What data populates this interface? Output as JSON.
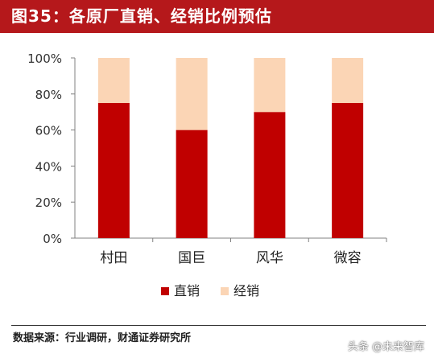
{
  "header": {
    "title": "图35：各原厂直销、经销比例预估"
  },
  "chart_data": {
    "type": "bar",
    "stacked": true,
    "categories": [
      "村田",
      "国巨",
      "风华",
      "微容"
    ],
    "series": [
      {
        "name": "直销",
        "values": [
          75,
          60,
          70,
          75
        ],
        "color": "#c00000"
      },
      {
        "name": "经销",
        "values": [
          25,
          40,
          30,
          25
        ],
        "color": "#fbd5b5"
      }
    ],
    "yticks": [
      "0%",
      "20%",
      "40%",
      "60%",
      "80%",
      "100%"
    ],
    "ylim": [
      0,
      100
    ],
    "grid": false,
    "legend_position": "bottom"
  },
  "footer": {
    "source": "数据来源：行业调研，财通证券研究所",
    "watermark": "头条 @未来智库"
  }
}
